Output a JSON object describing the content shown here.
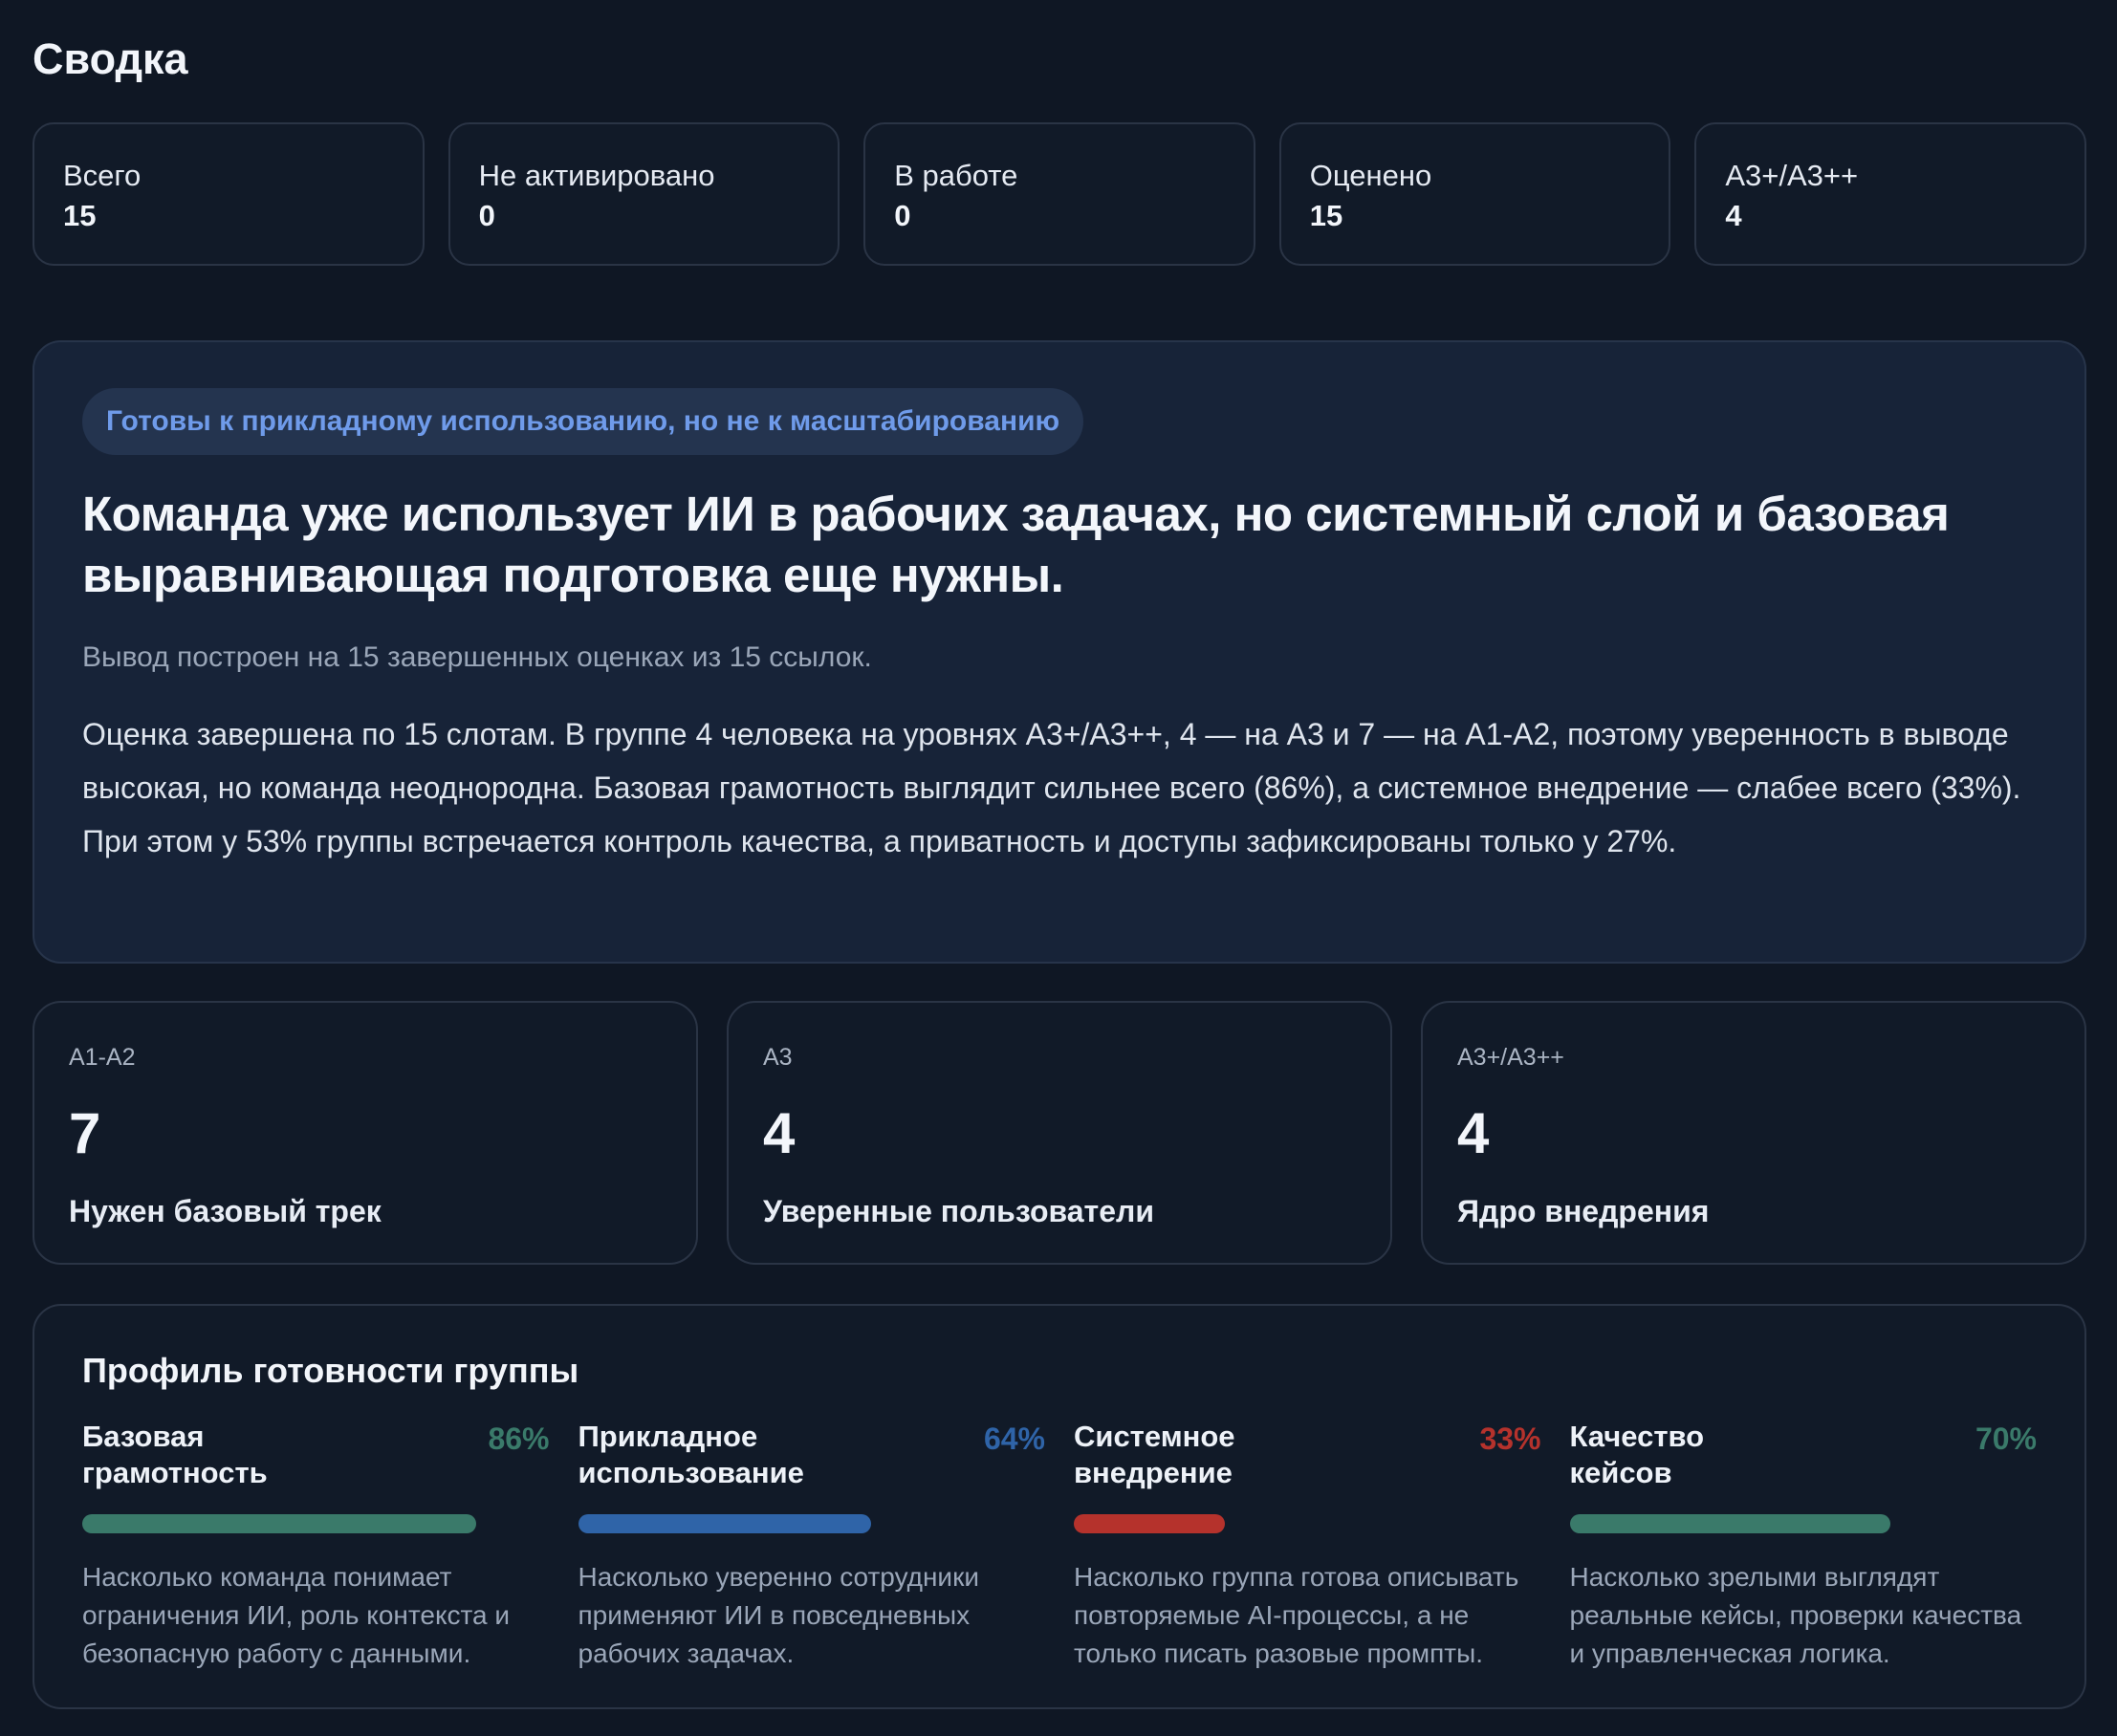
{
  "summary": {
    "title": "Сводка",
    "stats": [
      {
        "label": "Всего",
        "value": "15"
      },
      {
        "label": "Не активировано",
        "value": "0"
      },
      {
        "label": "В работе",
        "value": "0"
      },
      {
        "label": "Оценено",
        "value": "15"
      },
      {
        "label": "A3+/A3++",
        "value": "4"
      }
    ]
  },
  "verdict": {
    "badge": "Готовы к прикладному использованию, но не к масштабированию",
    "title": "Команда уже использует ИИ в рабочих задачах, но системный слой и базовая выравнивающая подготовка еще нужны.",
    "subtitle": "Вывод построен на 15 завершенных оценках из 15 ссылок.",
    "body": "Оценка завершена по 15 слотам. В группе 4 человека на уровнях A3+/A3++, 4 — на A3 и 7 — на A1-A2, поэтому уверенность в выводе высокая, но команда неоднородна. Базовая грамотность выглядит сильнее всего (86%), а системное внедрение — слабее всего (33%). При этом у 53% группы встречается контроль качества, а приватность и доступы зафиксированы только у 27%."
  },
  "levels": [
    {
      "code": "A1-A2",
      "count": "7",
      "caption": "Нужен базовый трек"
    },
    {
      "code": "A3",
      "count": "4",
      "caption": "Уверенные пользователи"
    },
    {
      "code": "A3+/A3++",
      "count": "4",
      "caption": "Ядро внедрения"
    }
  ],
  "profile": {
    "title": "Профиль готовности группы",
    "metrics": [
      {
        "name": "Базовая\nграмотность",
        "pct_label": "86%",
        "value": 0.86,
        "color": "#3a7a6a",
        "desc": "Насколько команда понимает ограничения ИИ, роль контекста и безопасную работу с данными."
      },
      {
        "name": "Прикладное\nиспользование",
        "pct_label": "64%",
        "value": 0.64,
        "color": "#2f64a8",
        "desc": "Насколько уверенно сотрудники применяют ИИ в повседневных рабочих задачах."
      },
      {
        "name": "Системное\nвнедрение",
        "pct_label": "33%",
        "value": 0.33,
        "color": "#b5322c",
        "desc": "Насколько группа готова описывать повторяемые AI-процессы, а не только писать разовые промпты."
      },
      {
        "name": "Качество\nкейсов",
        "pct_label": "70%",
        "value": 0.7,
        "color": "#3a7a6a",
        "desc": "Насколько зрелыми выглядят реальные кейсы, проверки качества и управленческая логика."
      }
    ]
  }
}
